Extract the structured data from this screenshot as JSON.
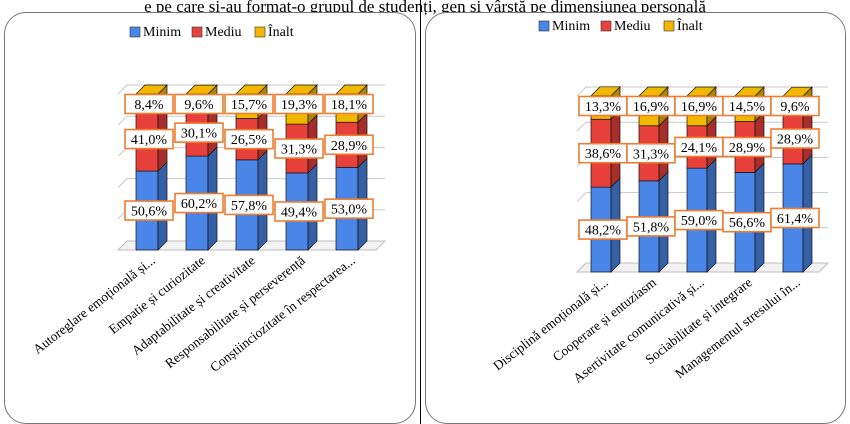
{
  "header_fragment": "e pe care și-au format-o grupul de studenți, gen și vârstă pe dimensiunea personală",
  "colors": {
    "minim": "#4a86e8",
    "mediu": "#e8403a",
    "inalt": "#f2b800",
    "label_border": "#ed7d31"
  },
  "chart_data": [
    {
      "type": "bar",
      "stacked": true,
      "legend": [
        "Minim",
        "Mediu",
        "Înalt"
      ],
      "legend_position": "top",
      "categories": [
        "Autoreglare emoțională și...",
        "Empatie și curiozitate",
        "Adaptabilitate și creativitate",
        "Responsabilitate și perseverență",
        "Conștiinciozitate în respectarea..."
      ],
      "series": [
        {
          "name": "Minim",
          "values": [
            50.6,
            60.2,
            57.8,
            49.4,
            53.0
          ],
          "labels": [
            "50,6%",
            "60,2%",
            "57,8%",
            "49,4%",
            "53,0%"
          ]
        },
        {
          "name": "Mediu",
          "values": [
            41.0,
            30.1,
            26.5,
            31.3,
            28.9
          ],
          "labels": [
            "41,0%",
            "30,1%",
            "26,5%",
            "31,3%",
            "28,9%"
          ]
        },
        {
          "name": "Înalt",
          "values": [
            8.4,
            9.6,
            15.7,
            19.3,
            18.1
          ],
          "labels": [
            "8,4%",
            "9,6%",
            "15,7%",
            "19,3%",
            "18,1%"
          ]
        }
      ],
      "ylim": [
        0,
        100
      ],
      "grid": true
    },
    {
      "type": "bar",
      "stacked": true,
      "legend": [
        "Minim",
        "Mediu",
        "Înalt"
      ],
      "legend_position": "top",
      "categories": [
        "Disciplină emoțională și...",
        "Cooperare și entuziasm",
        "Asertivitate comunicativă și...",
        "Sociabilitate și integrare",
        "Managementul stresului în..."
      ],
      "series": [
        {
          "name": "Minim",
          "values": [
            48.2,
            51.8,
            59.0,
            56.6,
            61.4
          ],
          "labels": [
            "48,2%",
            "51,8%",
            "59,0%",
            "56,6%",
            "61,4%"
          ]
        },
        {
          "name": "Mediu",
          "values": [
            38.6,
            31.3,
            24.1,
            28.9,
            28.9
          ],
          "labels": [
            "38,6%",
            "31,3%",
            "24,1%",
            "28,9%",
            "28,9%"
          ]
        },
        {
          "name": "Înalt",
          "values": [
            13.3,
            16.9,
            16.9,
            14.5,
            9.6
          ],
          "labels": [
            "13,3%",
            "16,9%",
            "16,9%",
            "14,5%",
            "9,6%"
          ]
        }
      ],
      "ylim": [
        0,
        100
      ],
      "grid": true
    }
  ]
}
